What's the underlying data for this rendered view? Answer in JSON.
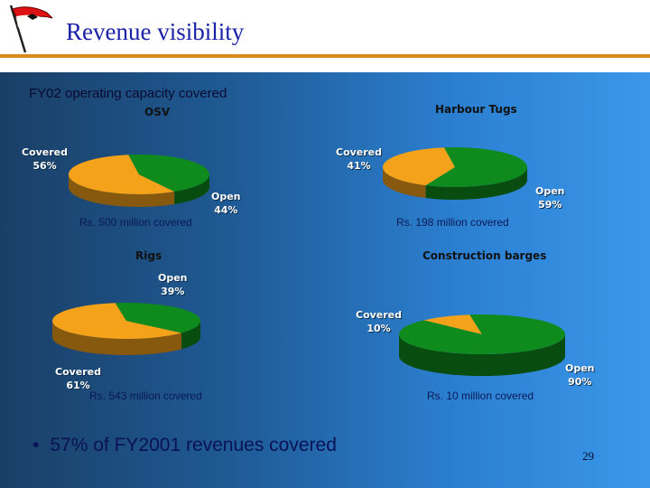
{
  "title": "Revenue visibility",
  "subtitle": "FY02 operating capacity covered",
  "colors": {
    "covered": "#f4a21a",
    "open": "#0f8a1c",
    "header_line": "#d98b1e",
    "title": "#1a23a8"
  },
  "charts": [
    {
      "title": "OSV",
      "covered_label": "Covered",
      "covered_pct": "56%",
      "open_label": "Open",
      "open_pct": "44%",
      "caption": "Rs. 500 million covered",
      "covered_fraction": 0.56
    },
    {
      "title": "Harbour Tugs",
      "covered_label": "Covered",
      "covered_pct": "41%",
      "open_label": "Open",
      "open_pct": "59%",
      "caption": "Rs. 198 million covered",
      "covered_fraction": 0.41
    },
    {
      "title": "Rigs",
      "covered_label": "Covered",
      "covered_pct": "61%",
      "open_label": "Open",
      "open_pct": "39%",
      "caption": "Rs. 543 million covered",
      "covered_fraction": 0.61
    },
    {
      "title": "Construction barges",
      "covered_label": "Covered",
      "covered_pct": "10%",
      "open_label": "Open",
      "open_pct": "90%",
      "caption": "Rs. 10 million covered",
      "covered_fraction": 0.1
    }
  ],
  "bullet": "57% of FY2001 revenues covered",
  "page_number": "29"
}
